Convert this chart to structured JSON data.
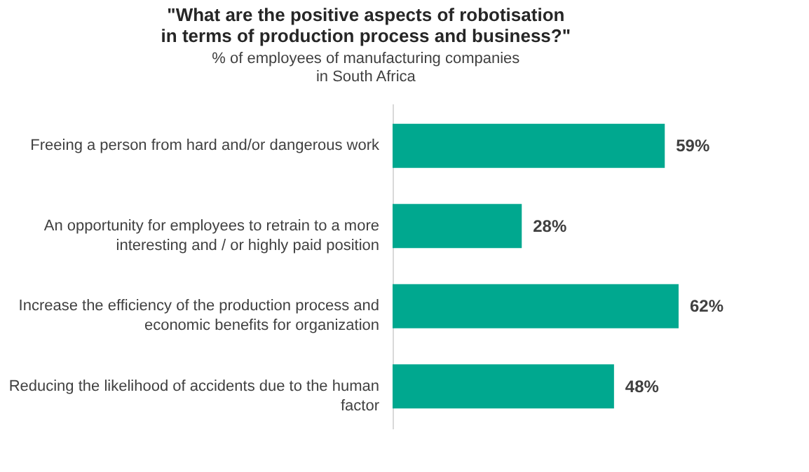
{
  "chart_data": {
    "type": "bar",
    "orientation": "horizontal",
    "title": [
      "\"What are the positive aspects of robotisation",
      "in terms of production process and business?\""
    ],
    "subtitle": [
      "% of employees of manufacturing companies",
      "in South Africa"
    ],
    "categories": [
      "Freeing a person from hard and/or dangerous work",
      "An opportunity for employees to retrain to a more\ninteresting and / or highly paid position",
      "Increase the efficiency of the production process and\neconomic benefits for organization",
      "Reducing the likelihood of accidents due to the human\nfactor"
    ],
    "values": [
      59,
      28,
      62,
      48
    ],
    "value_labels": [
      "59%",
      "28%",
      "62%",
      "48%"
    ],
    "color": "#00a88f",
    "grid": false
  }
}
